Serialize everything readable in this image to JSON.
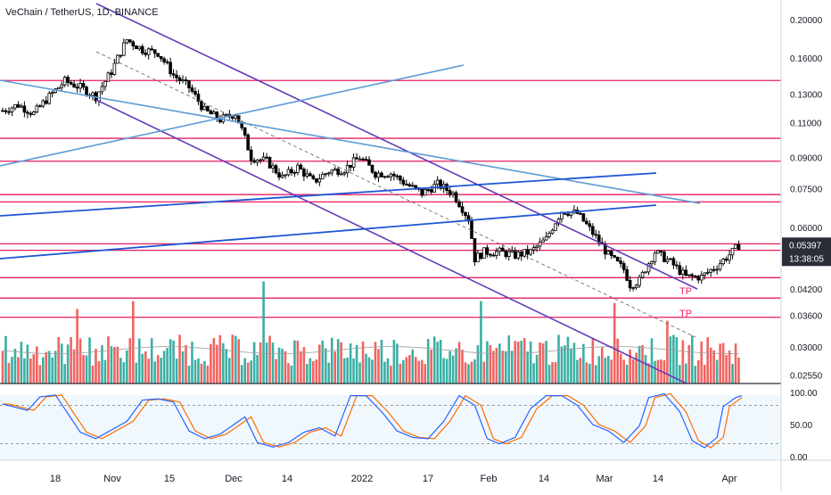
{
  "header": {
    "title": "VeChain / TetherUS, 1D, BINANCE"
  },
  "price_axis": {
    "ticks": [
      "0.20000",
      "0.16000",
      "0.13000",
      "0.11000",
      "0.09000",
      "0.07500",
      "0.06000",
      "0.04200",
      "0.03600",
      "0.03000",
      "0.02550"
    ],
    "current_price": "0.05397",
    "countdown": "13:38:05"
  },
  "oscillator_axis": {
    "ticks": [
      "100.00",
      "50.00",
      "0.00"
    ]
  },
  "time_axis": {
    "ticks": [
      "18",
      "Nov",
      "15",
      "Dec",
      "14",
      "2022",
      "17",
      "Feb",
      "14",
      "Mar",
      "14",
      "Apr"
    ]
  },
  "annotations": {
    "tp1": "TP",
    "tp2": "TP"
  },
  "colors": {
    "bull_candle": "#ffffff",
    "bear_candle": "#000000",
    "bull_volume": "#26a69a",
    "bear_volume": "#ef5350",
    "level_line": "#e91e63",
    "channel_line": "#673ab7",
    "trend_blue": "#1e56d6",
    "trend_light": "#5b9bd5",
    "stoch_k": "#2962ff",
    "stoch_d": "#ff6d00"
  },
  "chart_data": {
    "type": "candlestick",
    "symbol": "VeChain / TetherUS",
    "interval": "1D",
    "exchange": "BINANCE",
    "price_scale": "log",
    "price_range": [
      0.0245,
      0.215
    ],
    "horizontal_levels": [
      0.1405,
      0.1005,
      0.088,
      0.0725,
      0.0695,
      0.0545,
      0.0525,
      0.0448,
      0.0398,
      0.0356
    ],
    "candle_close_path": [
      [
        0,
        0.118
      ],
      [
        5,
        0.122
      ],
      [
        10,
        0.116
      ],
      [
        15,
        0.128
      ],
      [
        20,
        0.14
      ],
      [
        25,
        0.135
      ],
      [
        30,
        0.128
      ],
      [
        35,
        0.148
      ],
      [
        40,
        0.178
      ],
      [
        45,
        0.168
      ],
      [
        50,
        0.165
      ],
      [
        55,
        0.145
      ],
      [
        60,
        0.135
      ],
      [
        65,
        0.118
      ],
      [
        70,
        0.112
      ],
      [
        75,
        0.116
      ],
      [
        80,
        0.09
      ],
      [
        85,
        0.088
      ],
      [
        90,
        0.08
      ],
      [
        95,
        0.085
      ],
      [
        100,
        0.078
      ],
      [
        105,
        0.083
      ],
      [
        110,
        0.084
      ],
      [
        115,
        0.09
      ],
      [
        120,
        0.082
      ],
      [
        125,
        0.082
      ],
      [
        130,
        0.077
      ],
      [
        135,
        0.073
      ],
      [
        140,
        0.077
      ],
      [
        145,
        0.073
      ],
      [
        150,
        0.063
      ],
      [
        152,
        0.05
      ],
      [
        155,
        0.052
      ],
      [
        160,
        0.052
      ],
      [
        165,
        0.051
      ],
      [
        170,
        0.052
      ],
      [
        175,
        0.056
      ],
      [
        180,
        0.066
      ],
      [
        185,
        0.065
      ],
      [
        190,
        0.058
      ],
      [
        195,
        0.051
      ],
      [
        200,
        0.047
      ],
      [
        202,
        0.043
      ],
      [
        205,
        0.044
      ],
      [
        210,
        0.052
      ],
      [
        215,
        0.049
      ],
      [
        220,
        0.045
      ],
      [
        225,
        0.045
      ],
      [
        230,
        0.048
      ],
      [
        235,
        0.052
      ],
      [
        237,
        0.054
      ]
    ],
    "volume_spike_days": [
      {
        "day": 24,
        "value": 3.8
      },
      {
        "day": 42,
        "value": 4.2
      },
      {
        "day": 84,
        "value": 5.2
      },
      {
        "day": 154,
        "value": 4.2
      },
      {
        "day": 197,
        "value": 4.1
      },
      {
        "day": 214,
        "value": 3.2
      }
    ],
    "stochastic_k_path": [
      [
        0,
        82
      ],
      [
        8,
        72
      ],
      [
        12,
        93
      ],
      [
        17,
        96
      ],
      [
        25,
        38
      ],
      [
        30,
        28
      ],
      [
        40,
        55
      ],
      [
        45,
        88
      ],
      [
        50,
        90
      ],
      [
        55,
        85
      ],
      [
        60,
        40
      ],
      [
        65,
        28
      ],
      [
        70,
        35
      ],
      [
        78,
        62
      ],
      [
        82,
        22
      ],
      [
        87,
        15
      ],
      [
        92,
        22
      ],
      [
        97,
        38
      ],
      [
        102,
        45
      ],
      [
        107,
        32
      ],
      [
        112,
        95
      ],
      [
        117,
        95
      ],
      [
        122,
        70
      ],
      [
        127,
        40
      ],
      [
        132,
        30
      ],
      [
        137,
        28
      ],
      [
        142,
        55
      ],
      [
        147,
        95
      ],
      [
        152,
        80
      ],
      [
        156,
        28
      ],
      [
        160,
        20
      ],
      [
        165,
        30
      ],
      [
        170,
        75
      ],
      [
        175,
        95
      ],
      [
        180,
        95
      ],
      [
        185,
        80
      ],
      [
        190,
        50
      ],
      [
        195,
        40
      ],
      [
        200,
        22
      ],
      [
        205,
        48
      ],
      [
        208,
        92
      ],
      [
        213,
        98
      ],
      [
        218,
        70
      ],
      [
        222,
        25
      ],
      [
        226,
        14
      ],
      [
        230,
        30
      ],
      [
        232,
        78
      ],
      [
        236,
        92
      ],
      [
        238,
        95
      ]
    ],
    "stochastic_levels": [
      80,
      20
    ],
    "volume_ma": "gray"
  }
}
